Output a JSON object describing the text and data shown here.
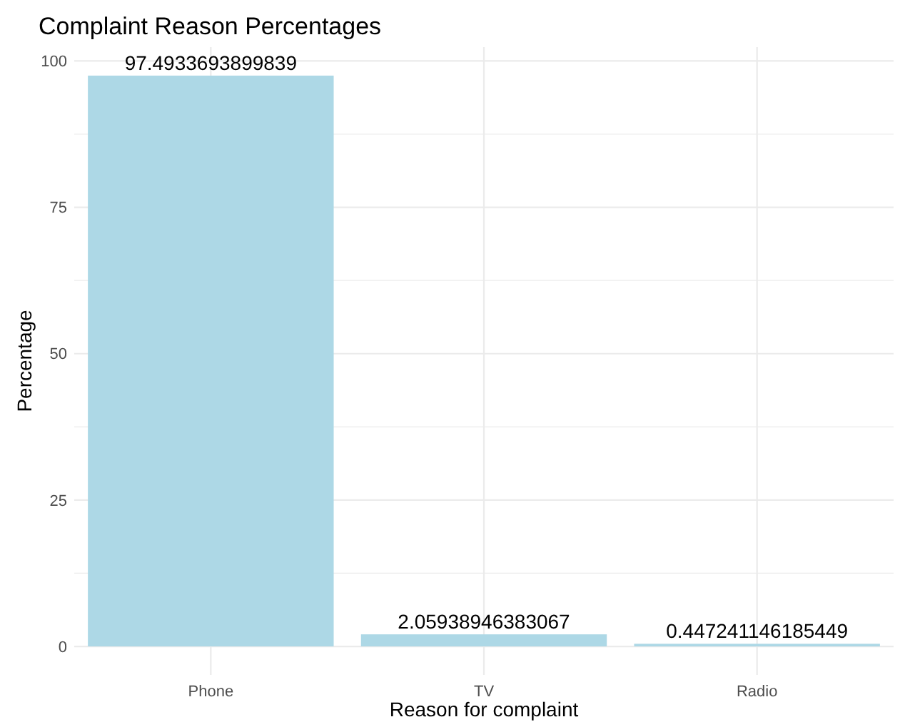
{
  "chart_data": {
    "type": "bar",
    "title": "Complaint Reason Percentages",
    "xlabel": "Reason for complaint",
    "ylabel": "Percentage",
    "categories": [
      "Phone",
      "TV",
      "Radio"
    ],
    "values": [
      97.4933693899839,
      2.05938946383067,
      0.447241146185449
    ],
    "color": "#add8e6",
    "data_labels": true,
    "ylim": [
      -4.87,
      102.37
    ],
    "yticks": [
      0,
      {
        "value": 12.5,
        "label": null
      },
      25,
      {
        "value": 37.5,
        "label": null
      },
      50,
      {
        "value": 62.5,
        "label": null
      },
      75,
      {
        "value": 87.5,
        "label": null
      },
      100
    ],
    "grid": true
  }
}
